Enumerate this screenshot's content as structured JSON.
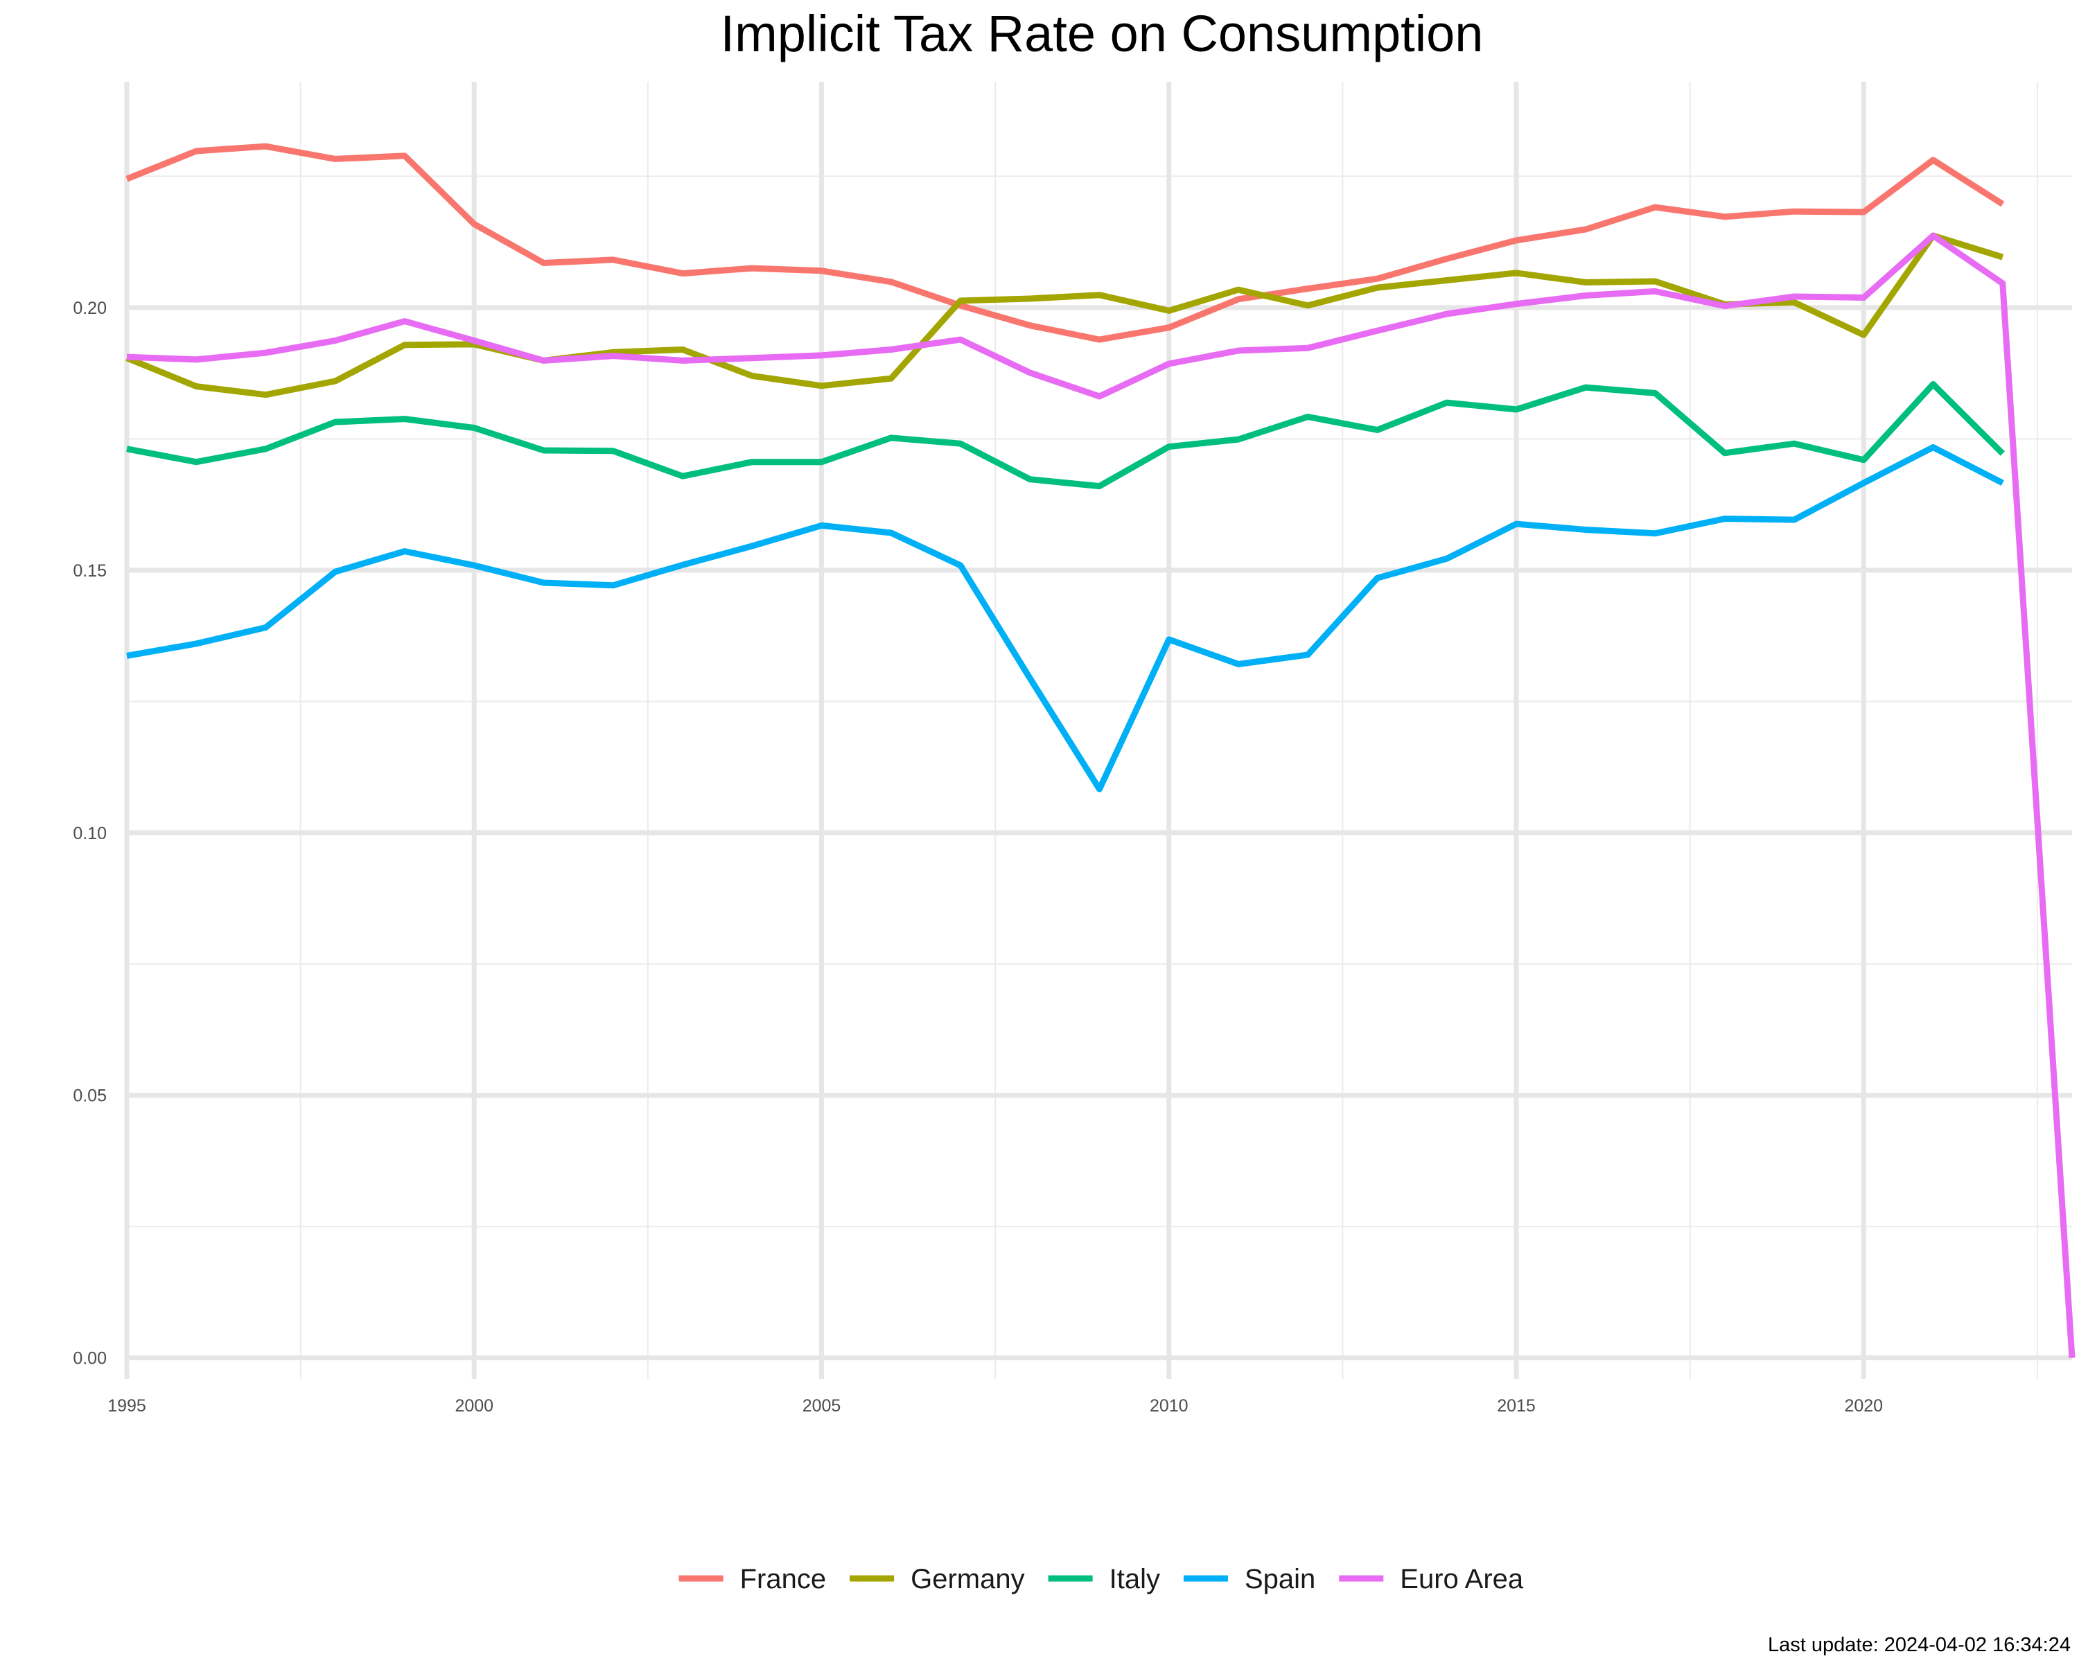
{
  "chart_data": {
    "type": "line",
    "title": "Implicit Tax Rate on Consumption",
    "caption": "Last update: 2024-04-02 16:34:24",
    "xlabel": "",
    "ylabel": "",
    "xlim": [
      1995,
      2023
    ],
    "ylim": [
      -0.004,
      0.243
    ],
    "x_ticks": [
      1995,
      2000,
      2005,
      2010,
      2015,
      2020
    ],
    "x_tick_labels": [
      "1995",
      "2000",
      "2005",
      "2010",
      "2015",
      "2020"
    ],
    "y_ticks": [
      0.0,
      0.05,
      0.1,
      0.15,
      0.2
    ],
    "y_tick_labels": [
      "0.00",
      "0.05",
      "0.10",
      "0.15",
      "0.20"
    ],
    "grid": true,
    "legend_position": "bottom",
    "series": [
      {
        "name": "France",
        "color": "#F8766D",
        "x": [
          1995,
          1996,
          1997,
          1998,
          1999,
          2000,
          2001,
          2002,
          2003,
          2004,
          2005,
          2006,
          2007,
          2008,
          2009,
          2010,
          2011,
          2012,
          2013,
          2014,
          2015,
          2016,
          2017,
          2018,
          2019,
          2020,
          2021,
          2022
        ],
        "y": [
          0.2245,
          0.2298,
          0.2307,
          0.2283,
          0.2289,
          0.2159,
          0.2085,
          0.2091,
          0.2065,
          0.2075,
          0.207,
          0.2049,
          0.2004,
          0.1966,
          0.1939,
          0.1962,
          0.2016,
          0.2036,
          0.2055,
          0.2093,
          0.2128,
          0.2149,
          0.2191,
          0.2173,
          0.2183,
          0.2182,
          0.2281,
          0.2197
        ]
      },
      {
        "name": "Germany",
        "color": "#A3A500",
        "x": [
          1995,
          1996,
          1997,
          1998,
          1999,
          2000,
          2001,
          2002,
          2003,
          2004,
          2005,
          2006,
          2007,
          2008,
          2009,
          2010,
          2011,
          2012,
          2013,
          2014,
          2015,
          2016,
          2017,
          2018,
          2019,
          2020,
          2021,
          2022
        ],
        "y": [
          0.1904,
          0.185,
          0.1834,
          0.186,
          0.1929,
          0.193,
          0.1899,
          0.1915,
          0.192,
          0.187,
          0.1851,
          0.1865,
          0.2013,
          0.2017,
          0.2024,
          0.1994,
          0.2034,
          0.2004,
          0.2038,
          0.2052,
          0.2066,
          0.2048,
          0.205,
          0.2006,
          0.201,
          0.1948,
          0.2137,
          0.2096
        ]
      },
      {
        "name": "Italy",
        "color": "#00BF7D",
        "x": [
          1995,
          1996,
          1997,
          1998,
          1999,
          2000,
          2001,
          2002,
          2003,
          2004,
          2005,
          2006,
          2007,
          2008,
          2009,
          2010,
          2011,
          2012,
          2013,
          2014,
          2015,
          2016,
          2017,
          2018,
          2019,
          2020,
          2021,
          2022
        ],
        "y": [
          0.1731,
          0.1706,
          0.1731,
          0.1782,
          0.1788,
          0.1771,
          0.1728,
          0.1727,
          0.1679,
          0.1706,
          0.1706,
          0.1752,
          0.1741,
          0.1673,
          0.166,
          0.1735,
          0.1749,
          0.1792,
          0.1767,
          0.1819,
          0.1806,
          0.1848,
          0.1837,
          0.1723,
          0.1741,
          0.171,
          0.1854,
          0.1722
        ]
      },
      {
        "name": "Spain",
        "color": "#00B0F6",
        "x": [
          1995,
          1996,
          1997,
          1998,
          1999,
          2000,
          2001,
          2002,
          2003,
          2004,
          2005,
          2006,
          2007,
          2008,
          2009,
          2010,
          2011,
          2012,
          2013,
          2014,
          2015,
          2016,
          2017,
          2018,
          2019,
          2020,
          2021,
          2022
        ],
        "y": [
          0.1337,
          0.136,
          0.1391,
          0.1497,
          0.1536,
          0.1509,
          0.1476,
          0.1471,
          0.151,
          0.1546,
          0.1585,
          0.1571,
          0.1509,
          0.1294,
          0.1083,
          0.1368,
          0.1321,
          0.1339,
          0.1485,
          0.1522,
          0.1588,
          0.1577,
          0.157,
          0.1598,
          0.1596,
          0.1666,
          0.1734,
          0.1666
        ]
      },
      {
        "name": "Euro Area",
        "color": "#E76BF3",
        "x": [
          1995,
          1996,
          1997,
          1998,
          1999,
          2000,
          2001,
          2002,
          2003,
          2004,
          2005,
          2006,
          2007,
          2008,
          2009,
          2010,
          2011,
          2012,
          2013,
          2014,
          2015,
          2016,
          2017,
          2018,
          2019,
          2020,
          2021,
          2022,
          2023
        ],
        "y": [
          0.1906,
          0.1901,
          0.1914,
          0.1937,
          0.1974,
          0.1937,
          0.1899,
          0.1908,
          0.1899,
          0.1904,
          0.1909,
          0.192,
          0.1939,
          0.1876,
          0.1831,
          0.1893,
          0.1918,
          0.1923,
          0.1956,
          0.1988,
          0.2007,
          0.2023,
          0.2031,
          0.2003,
          0.2021,
          0.2019,
          0.2137,
          0.2046,
          0.0
        ]
      }
    ]
  }
}
